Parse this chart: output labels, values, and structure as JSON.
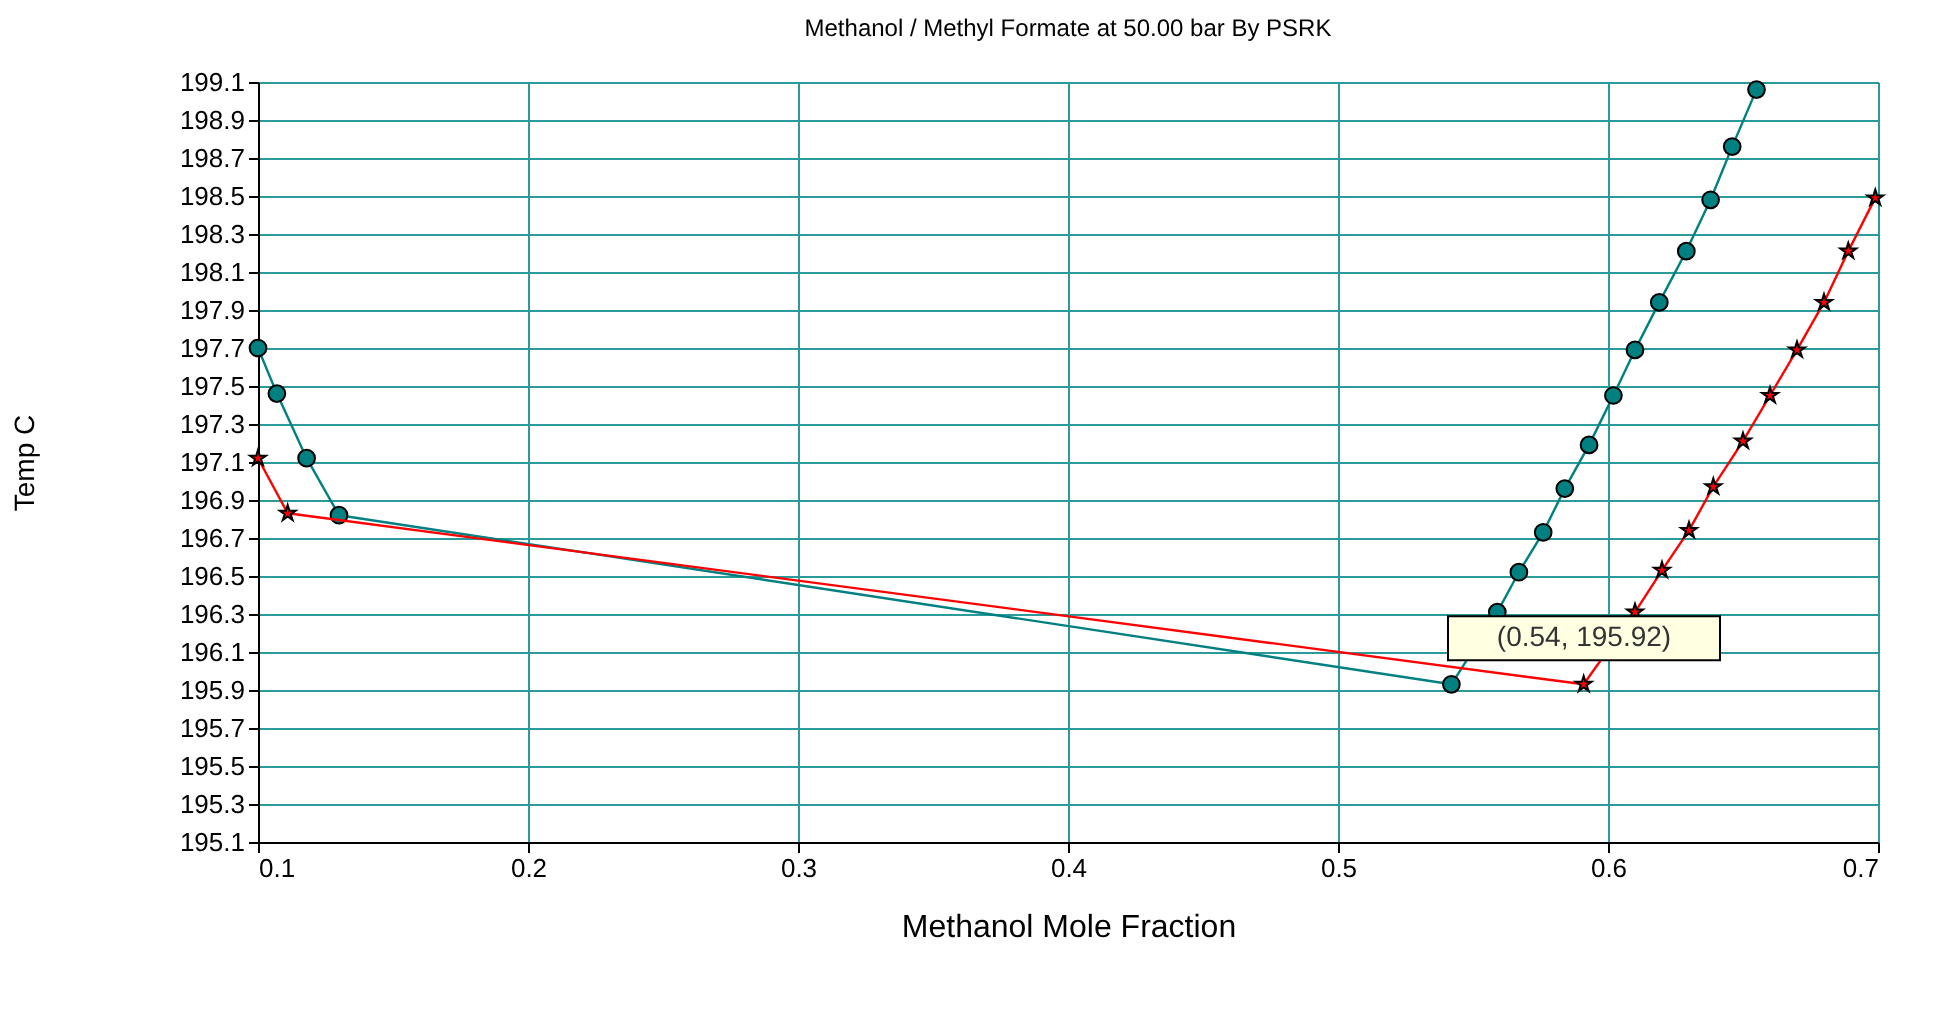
{
  "chart_data": {
    "type": "line",
    "title": "Methanol / Methyl Formate at    50.00 bar By PSRK",
    "xlabel": "Methanol Mole Fraction",
    "ylabel": "Temp C",
    "xlim": [
      0.1,
      0.7
    ],
    "xticks": [
      0.1,
      0.2,
      0.3,
      0.4,
      0.5,
      0.6,
      0.7
    ],
    "ylim": [
      195.1,
      199.1
    ],
    "yticks": [
      195.1,
      195.3,
      195.5,
      195.7,
      195.9,
      196.1,
      196.3,
      196.5,
      196.7,
      196.9,
      197.1,
      197.3,
      197.5,
      197.7,
      197.9,
      198.1,
      198.3,
      198.5,
      198.7,
      198.9,
      199.1
    ],
    "grid": true,
    "line_style": "solid",
    "series": [
      {
        "color": "#008080",
        "marker": "circle",
        "x": [
          0.1,
          0.107,
          0.118,
          0.13,
          0.542,
          0.559,
          0.567,
          0.576,
          0.584,
          0.593,
          0.602,
          0.61,
          0.619,
          0.629,
          0.638,
          0.646,
          0.655
        ],
        "values": [
          197.7,
          197.46,
          197.12,
          196.82,
          195.93,
          196.31,
          196.52,
          196.73,
          196.96,
          197.19,
          197.45,
          197.69,
          197.94,
          198.21,
          198.48,
          198.76,
          199.06
        ]
      },
      {
        "color": "#ff0000",
        "marker": "star",
        "x": [
          0.1,
          0.111,
          0.591,
          0.61,
          0.62,
          0.63,
          0.639,
          0.65,
          0.66,
          0.67,
          0.68,
          0.689,
          0.699
        ],
        "values": [
          197.12,
          196.83,
          195.93,
          196.31,
          196.53,
          196.74,
          196.97,
          197.21,
          197.45,
          197.69,
          197.94,
          198.21,
          198.49
        ]
      }
    ],
    "annotations": [
      {
        "text": "(0.54, 195.92)",
        "x": 0.54,
        "y": 195.92
      }
    ]
  }
}
